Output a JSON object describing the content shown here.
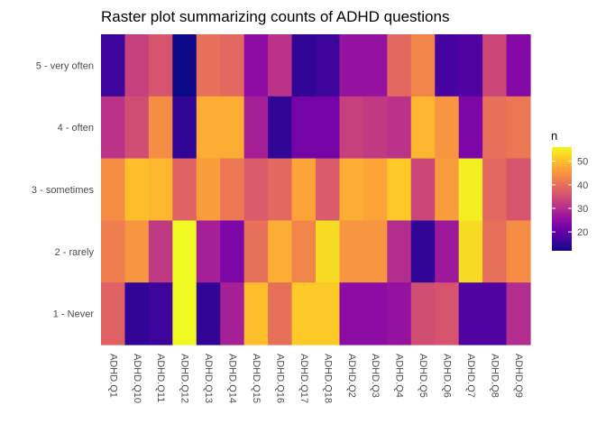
{
  "chart_data": {
    "type": "heatmap",
    "title": "Raster plot summarizing counts of ADHD questions",
    "xlabel": "",
    "ylabel": "",
    "x_categories": [
      "ADHD.Q1",
      "ADHD.Q10",
      "ADHD.Q11",
      "ADHD.Q12",
      "ADHD.Q13",
      "ADHD.Q14",
      "ADHD.Q15",
      "ADHD.Q16",
      "ADHD.Q17",
      "ADHD.Q18",
      "ADHD.Q2",
      "ADHD.Q3",
      "ADHD.Q4",
      "ADHD.Q5",
      "ADHD.Q6",
      "ADHD.Q7",
      "ADHD.Q8",
      "ADHD.Q9"
    ],
    "y_categories": [
      "5 - very often",
      "4 - often",
      "3 - sometimes",
      "2 - rarely",
      "1 - Never"
    ],
    "values": [
      [
        16,
        33,
        36,
        12,
        40,
        39,
        25,
        31,
        15,
        16,
        26,
        26,
        39,
        43,
        17,
        18,
        34,
        24
      ],
      [
        31,
        35,
        44,
        15,
        48,
        48,
        28,
        15,
        22,
        22,
        33,
        32,
        31,
        49,
        45,
        23,
        40,
        41
      ],
      [
        44,
        50,
        49,
        38,
        46,
        41,
        37,
        39,
        47,
        37,
        48,
        47,
        51,
        34,
        46,
        55,
        39,
        36
      ],
      [
        42,
        45,
        32,
        56,
        28,
        23,
        40,
        48,
        43,
        53,
        45,
        45,
        30,
        15,
        27,
        53,
        40,
        44
      ],
      [
        38,
        15,
        16,
        56,
        15,
        28,
        50,
        40,
        51,
        51,
        25,
        25,
        26,
        35,
        36,
        18,
        18,
        30
      ]
    ],
    "legend": {
      "title": "n",
      "ticks": [
        20,
        30,
        40,
        50
      ],
      "range": [
        12,
        56
      ],
      "position": "right"
    },
    "colorscale": "plasma",
    "grid": true
  }
}
